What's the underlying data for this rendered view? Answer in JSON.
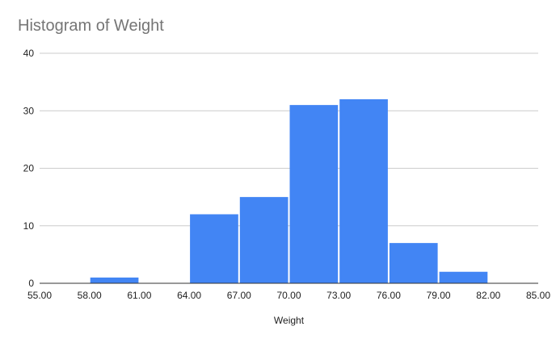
{
  "chart_data": {
    "type": "bar",
    "title": "Histogram of Weight",
    "xlabel": "Weight",
    "ylabel": "",
    "bin_edges": [
      55,
      58,
      61,
      64,
      67,
      70,
      73,
      76,
      79,
      82,
      85
    ],
    "x_tick_labels": [
      "55.00",
      "58.00",
      "61.00",
      "64.00",
      "67.00",
      "70.00",
      "73.00",
      "76.00",
      "79.00",
      "82.00",
      "85.00"
    ],
    "values": [
      0,
      1,
      0,
      12,
      15,
      31,
      32,
      7,
      2,
      0
    ],
    "ylim": [
      0,
      40
    ],
    "y_ticks": [
      0,
      10,
      20,
      30,
      40
    ],
    "grid": true,
    "legend": "none",
    "bar_color": "#4285f4",
    "grid_color": "#cccccc",
    "baseline_color": "#333333"
  }
}
